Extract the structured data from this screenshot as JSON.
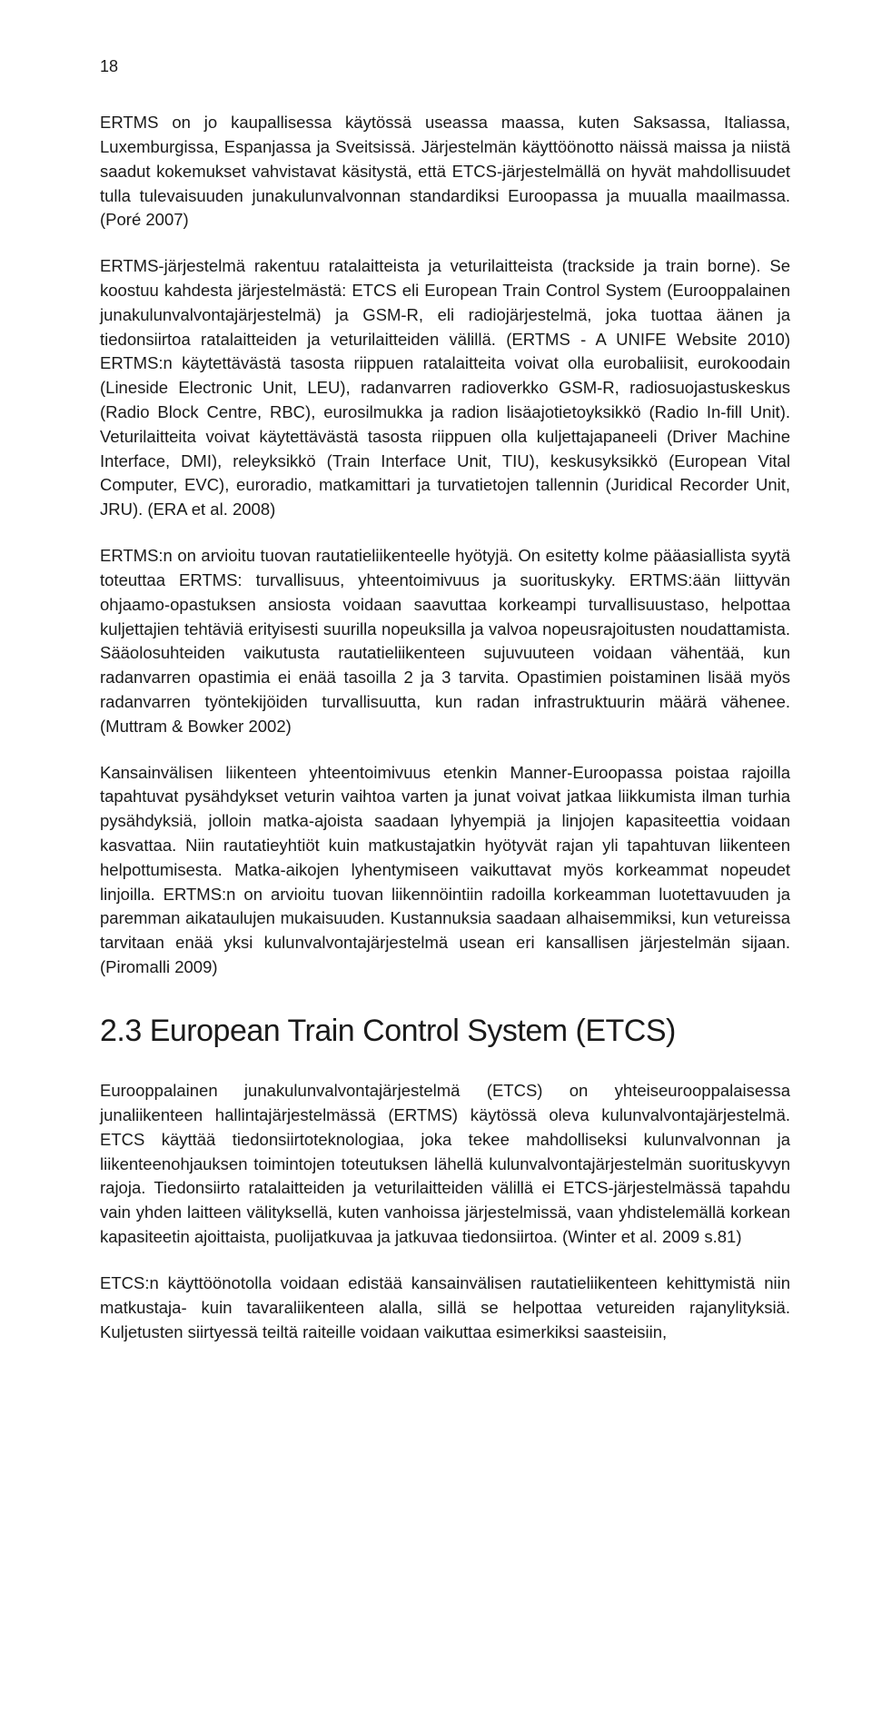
{
  "pageNumber": "18",
  "paragraphs": {
    "p1": "ERTMS on jo kaupallisessa käytössä useassa maassa, kuten Saksassa, Italiassa, Luxemburgissa, Espanjassa ja Sveitsissä. Järjestelmän käyttöönotto näissä maissa ja niistä saadut kokemukset vahvistavat käsitystä, että ETCS-järjestelmällä on hyvät mahdollisuudet tulla tulevaisuuden junakulunvalvonnan standardiksi Euroopassa ja muualla maailmassa. (Poré 2007)",
    "p2": "ERTMS-järjestelmä rakentuu ratalaitteista ja veturilaitteista (trackside ja train borne). Se koostuu kahdesta järjestelmästä: ETCS eli European Train Control System (Eurooppalainen junakulunvalvontajärjestelmä) ja GSM-R, eli radiojärjestelmä, joka tuottaa äänen ja tiedonsiirtoa ratalaitteiden ja veturilaitteiden välillä. (ERTMS - A UNIFE Website 2010) ERTMS:n käytettävästä tasosta riippuen ratalaitteita voivat olla eurobaliisit, eurokoodain (Lineside Electronic Unit, LEU), radanvarren radioverkko GSM-R, radiosuojastuskeskus (Radio Block Centre, RBC), eurosilmukka ja radion lisäajotietoyksikkö (Radio In-fill Unit). Veturilaitteita voivat käytettävästä tasosta riippuen olla kuljettajapaneeli (Driver Machine Interface, DMI), releyksikkö (Train Interface Unit, TIU), keskusyksikkö (European Vital Computer, EVC), euroradio, matkamittari ja turvatietojen tallennin (Juridical Recorder Unit, JRU). (ERA et al. 2008)",
    "p3": "ERTMS:n on arvioitu tuovan rautatieliikenteelle hyötyjä. On esitetty kolme pääasiallista syytä toteuttaa ERTMS: turvallisuus, yhteentoimivuus ja suorituskyky. ERTMS:ään liittyvän ohjaamo-opastuksen ansiosta voidaan saavuttaa korkeampi turvallisuustaso, helpottaa kuljettajien tehtäviä erityisesti suurilla nopeuksilla ja valvoa nopeusrajoitusten noudattamista. Sääolosuhteiden vaikutusta rautatieliikenteen sujuvuuteen voidaan vähentää, kun radanvarren opastimia ei enää tasoilla 2 ja 3 tarvita. Opastimien poistaminen lisää myös radanvarren työntekijöiden turvallisuutta, kun radan infrastruktuurin määrä vähenee. (Muttram & Bowker 2002)",
    "p4": "Kansainvälisen liikenteen yhteentoimivuus etenkin Manner-Euroopassa poistaa rajoilla tapahtuvat pysähdykset veturin vaihtoa varten ja junat voivat jatkaa liikkumista ilman turhia pysähdyksiä, jolloin matka-ajoista saadaan lyhyempiä ja linjojen kapasiteettia voidaan kasvattaa. Niin rautatieyhtiöt kuin matkustajatkin hyötyvät rajan yli tapahtuvan liikenteen helpottumisesta. Matka-aikojen lyhentymiseen vaikuttavat myös korkeammat nopeudet linjoilla. ERTMS:n on arvioitu tuovan liikennöintiin radoilla korkeamman luotettavuuden ja paremman aikataulujen mukaisuuden. Kustannuksia saadaan alhaisemmiksi, kun vetureissa tarvitaan enää yksi kulunvalvontajärjestelmä usean eri kansallisen järjestelmän sijaan. (Piromalli 2009)",
    "p5": "Eurooppalainen junakulunvalvontajärjestelmä (ETCS) on yhteiseurooppalaisessa junaliikenteen hallintajärjestelmässä (ERTMS) käytössä oleva kulunvalvontajärjestelmä. ETCS käyttää tiedonsiirtoteknologiaa, joka tekee mahdolliseksi kulunvalvonnan ja liikenteenohjauksen toimintojen toteutuksen lähellä kulunvalvontajärjestelmän suorituskyvyn rajoja. Tiedonsiirto ratalaitteiden ja veturilaitteiden välillä ei ETCS-järjestelmässä tapahdu vain yhden laitteen välityksellä, kuten vanhoissa järjestelmissä, vaan yhdistelemällä korkean kapasiteetin ajoittaista, puolijatkuvaa ja jatkuvaa tiedonsiirtoa. (Winter et al. 2009 s.81)",
    "p6": "ETCS:n käyttöönotolla voidaan edistää kansainvälisen rautatieliikenteen kehittymistä niin matkustaja- kuin tavaraliikenteen alalla, sillä se helpottaa vetureiden rajanylityksiä. Kuljetusten siirtyessä teiltä raiteille voidaan vaikuttaa esimerkiksi saasteisiin,"
  },
  "sectionHeading": "2.3 European Train Control System (ETCS)",
  "styles": {
    "bodyFontSize": 18.5,
    "headingFontSize": 34,
    "lineHeight": 1.45,
    "textColor": "#1a1a1a",
    "backgroundColor": "#ffffff",
    "paragraphSpacing": 24,
    "pageWidth": 960
  }
}
